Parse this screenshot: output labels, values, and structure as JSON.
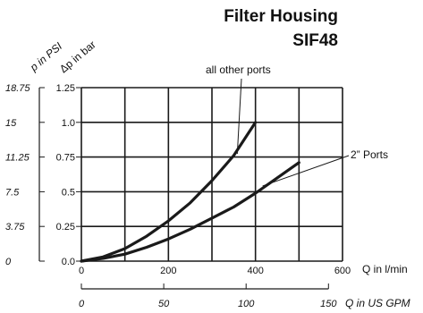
{
  "chart_data": {
    "type": "line",
    "title": "Filter Housing",
    "subtitle": "SIF48",
    "xlabel": "Q in l/min",
    "x2label": "Q in US GPM",
    "ylabel": "Δp in bar",
    "y2label": "p in PSI",
    "xlim": [
      0,
      600
    ],
    "ylim": [
      0,
      1.25
    ],
    "x_ticks": [
      "0",
      "200",
      "400",
      "600"
    ],
    "x2_ticks": [
      "0",
      "50",
      "100",
      "150"
    ],
    "y_ticks": [
      "0.0",
      "0.25",
      "0.5",
      "0.75",
      "1.0",
      "1.25"
    ],
    "y2_ticks": [
      "0",
      "3.75",
      "7.5",
      "11.25",
      "15",
      "18.75"
    ],
    "grid": true,
    "series": [
      {
        "name": "all other ports",
        "x": [
          0,
          50,
          100,
          150,
          200,
          250,
          300,
          350,
          400
        ],
        "y": [
          0,
          0.03,
          0.09,
          0.18,
          0.29,
          0.42,
          0.58,
          0.76,
          1.0
        ]
      },
      {
        "name": "2” Ports",
        "x": [
          0,
          50,
          100,
          150,
          200,
          250,
          300,
          350,
          400,
          450,
          500
        ],
        "y": [
          0,
          0.02,
          0.05,
          0.1,
          0.16,
          0.23,
          0.31,
          0.39,
          0.49,
          0.6,
          0.71
        ]
      }
    ]
  },
  "colors": {
    "line": "#1a1a1a",
    "grid": "#1a1a1a"
  }
}
